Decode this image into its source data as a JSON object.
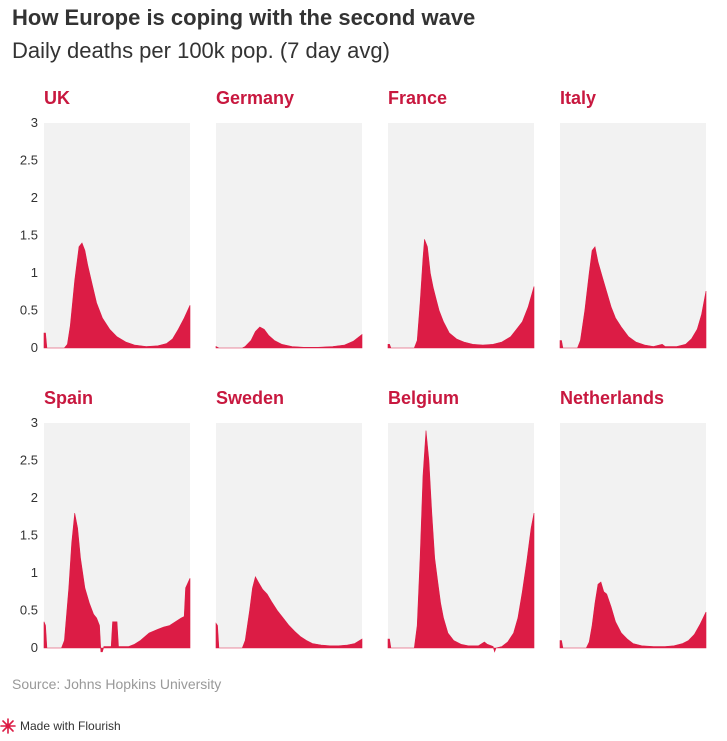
{
  "header": {
    "title": "How Europe is coping with the second wave",
    "subtitle": "Daily deaths per 100k pop. (7 day avg)"
  },
  "footer": {
    "source": "Source: Johns Hopkins University",
    "credit": "Made with Flourish"
  },
  "colors": {
    "accent": "#dc1c45",
    "panel_bg": "#f2f2f2",
    "title_text": "#333333",
    "country_label": "#c8183f"
  },
  "icons": {
    "credit_logo": "flourish-logo-icon"
  },
  "chart_data": {
    "type": "area",
    "title": "How Europe is coping with the second wave",
    "subtitle": "Daily deaths per 100k pop. (7 day avg)",
    "ylim": [
      0,
      3
    ],
    "yticks": [
      "0",
      "0.5",
      "1",
      "1.5",
      "2",
      "2.5",
      "3"
    ],
    "x_domain": [
      0,
      100
    ],
    "grid": false,
    "series": [
      {
        "name": "UK",
        "points": [
          [
            0,
            0.2
          ],
          [
            1,
            0.2
          ],
          [
            2,
            0
          ],
          [
            14,
            0
          ],
          [
            16,
            0.05
          ],
          [
            18,
            0.3
          ],
          [
            21,
            0.9
          ],
          [
            24,
            1.35
          ],
          [
            26,
            1.4
          ],
          [
            28,
            1.3
          ],
          [
            30,
            1.1
          ],
          [
            33,
            0.85
          ],
          [
            36,
            0.6
          ],
          [
            40,
            0.4
          ],
          [
            45,
            0.25
          ],
          [
            50,
            0.15
          ],
          [
            56,
            0.08
          ],
          [
            62,
            0.04
          ],
          [
            70,
            0.02
          ],
          [
            78,
            0.03
          ],
          [
            84,
            0.06
          ],
          [
            88,
            0.12
          ],
          [
            92,
            0.25
          ],
          [
            96,
            0.4
          ],
          [
            100,
            0.57
          ]
        ]
      },
      {
        "name": "Germany",
        "points": [
          [
            0,
            0.02
          ],
          [
            2,
            0
          ],
          [
            18,
            0
          ],
          [
            20,
            0.02
          ],
          [
            24,
            0.1
          ],
          [
            27,
            0.22
          ],
          [
            30,
            0.28
          ],
          [
            33,
            0.25
          ],
          [
            36,
            0.17
          ],
          [
            40,
            0.1
          ],
          [
            45,
            0.05
          ],
          [
            52,
            0.02
          ],
          [
            60,
            0.01
          ],
          [
            70,
            0.01
          ],
          [
            80,
            0.02
          ],
          [
            88,
            0.04
          ],
          [
            94,
            0.09
          ],
          [
            100,
            0.18
          ]
        ]
      },
      {
        "name": "France",
        "points": [
          [
            0,
            0.05
          ],
          [
            1,
            0.05
          ],
          [
            2,
            0
          ],
          [
            18,
            0
          ],
          [
            20,
            0.1
          ],
          [
            22,
            0.6
          ],
          [
            24,
            1.2
          ],
          [
            25,
            1.45
          ],
          [
            27,
            1.35
          ],
          [
            29,
            1.0
          ],
          [
            31,
            0.8
          ],
          [
            33,
            0.65
          ],
          [
            35,
            0.5
          ],
          [
            38,
            0.35
          ],
          [
            42,
            0.2
          ],
          [
            47,
            0.12
          ],
          [
            52,
            0.08
          ],
          [
            58,
            0.05
          ],
          [
            65,
            0.04
          ],
          [
            72,
            0.05
          ],
          [
            78,
            0.08
          ],
          [
            84,
            0.15
          ],
          [
            88,
            0.25
          ],
          [
            92,
            0.35
          ],
          [
            96,
            0.55
          ],
          [
            100,
            0.82
          ]
        ]
      },
      {
        "name": "Italy",
        "points": [
          [
            0,
            0.1
          ],
          [
            1,
            0.1
          ],
          [
            2,
            0
          ],
          [
            12,
            0
          ],
          [
            14,
            0.1
          ],
          [
            17,
            0.5
          ],
          [
            20,
            1.0
          ],
          [
            22,
            1.3
          ],
          [
            24,
            1.35
          ],
          [
            26,
            1.15
          ],
          [
            29,
            0.95
          ],
          [
            32,
            0.75
          ],
          [
            35,
            0.55
          ],
          [
            38,
            0.4
          ],
          [
            42,
            0.28
          ],
          [
            47,
            0.15
          ],
          [
            52,
            0.08
          ],
          [
            58,
            0.04
          ],
          [
            64,
            0.02
          ],
          [
            70,
            0.05
          ],
          [
            72,
            0.02
          ],
          [
            80,
            0.02
          ],
          [
            86,
            0.05
          ],
          [
            90,
            0.12
          ],
          [
            94,
            0.25
          ],
          [
            97,
            0.45
          ],
          [
            100,
            0.76
          ]
        ]
      },
      {
        "name": "Spain",
        "points": [
          [
            0,
            0.35
          ],
          [
            1,
            0.3
          ],
          [
            2,
            0
          ],
          [
            12,
            0
          ],
          [
            14,
            0.1
          ],
          [
            17,
            0.8
          ],
          [
            19,
            1.4
          ],
          [
            21,
            1.8
          ],
          [
            23,
            1.6
          ],
          [
            25,
            1.2
          ],
          [
            28,
            0.8
          ],
          [
            31,
            0.6
          ],
          [
            34,
            0.45
          ],
          [
            36,
            0.4
          ],
          [
            38,
            0.3
          ],
          [
            39,
            -0.05
          ],
          [
            40,
            -0.05
          ],
          [
            41,
            0.02
          ],
          [
            46,
            0.02
          ],
          [
            47,
            0.35
          ],
          [
            50,
            0.35
          ],
          [
            51,
            0.02
          ],
          [
            58,
            0.02
          ],
          [
            62,
            0.05
          ],
          [
            66,
            0.1
          ],
          [
            72,
            0.2
          ],
          [
            78,
            0.25
          ],
          [
            82,
            0.28
          ],
          [
            86,
            0.3
          ],
          [
            90,
            0.35
          ],
          [
            94,
            0.4
          ],
          [
            96,
            0.42
          ],
          [
            97,
            0.8
          ],
          [
            100,
            0.93
          ]
        ]
      },
      {
        "name": "Sweden",
        "points": [
          [
            0,
            0.33
          ],
          [
            1,
            0.3
          ],
          [
            2,
            0
          ],
          [
            18,
            0
          ],
          [
            20,
            0.1
          ],
          [
            23,
            0.5
          ],
          [
            25,
            0.8
          ],
          [
            27,
            0.95
          ],
          [
            29,
            0.88
          ],
          [
            32,
            0.78
          ],
          [
            35,
            0.72
          ],
          [
            38,
            0.62
          ],
          [
            42,
            0.5
          ],
          [
            46,
            0.4
          ],
          [
            50,
            0.3
          ],
          [
            54,
            0.22
          ],
          [
            58,
            0.15
          ],
          [
            62,
            0.1
          ],
          [
            66,
            0.06
          ],
          [
            72,
            0.04
          ],
          [
            78,
            0.03
          ],
          [
            84,
            0.03
          ],
          [
            90,
            0.04
          ],
          [
            95,
            0.06
          ],
          [
            100,
            0.12
          ]
        ]
      },
      {
        "name": "Belgium",
        "points": [
          [
            0,
            0.12
          ],
          [
            1,
            0.12
          ],
          [
            2,
            0
          ],
          [
            18,
            0
          ],
          [
            20,
            0.3
          ],
          [
            22,
            1.2
          ],
          [
            24,
            2.3
          ],
          [
            26,
            2.9
          ],
          [
            28,
            2.5
          ],
          [
            30,
            1.8
          ],
          [
            32,
            1.2
          ],
          [
            34,
            0.9
          ],
          [
            36,
            0.6
          ],
          [
            38,
            0.4
          ],
          [
            41,
            0.2
          ],
          [
            45,
            0.1
          ],
          [
            50,
            0.05
          ],
          [
            55,
            0.03
          ],
          [
            62,
            0.03
          ],
          [
            66,
            0.08
          ],
          [
            68,
            0.05
          ],
          [
            72,
            0.02
          ],
          [
            73,
            -0.05
          ],
          [
            74,
            0.0
          ],
          [
            78,
            0.02
          ],
          [
            82,
            0.08
          ],
          [
            86,
            0.2
          ],
          [
            89,
            0.4
          ],
          [
            92,
            0.75
          ],
          [
            95,
            1.15
          ],
          [
            98,
            1.6
          ],
          [
            100,
            1.8
          ]
        ]
      },
      {
        "name": "Netherlands",
        "points": [
          [
            0,
            0.1
          ],
          [
            1,
            0.1
          ],
          [
            2,
            0
          ],
          [
            18,
            0
          ],
          [
            20,
            0.08
          ],
          [
            22,
            0.3
          ],
          [
            24,
            0.6
          ],
          [
            26,
            0.85
          ],
          [
            28,
            0.88
          ],
          [
            30,
            0.75
          ],
          [
            32,
            0.72
          ],
          [
            35,
            0.55
          ],
          [
            38,
            0.35
          ],
          [
            42,
            0.2
          ],
          [
            46,
            0.12
          ],
          [
            50,
            0.06
          ],
          [
            56,
            0.03
          ],
          [
            64,
            0.02
          ],
          [
            72,
            0.02
          ],
          [
            78,
            0.03
          ],
          [
            84,
            0.06
          ],
          [
            88,
            0.1
          ],
          [
            92,
            0.18
          ],
          [
            96,
            0.32
          ],
          [
            100,
            0.48
          ]
        ]
      }
    ]
  }
}
